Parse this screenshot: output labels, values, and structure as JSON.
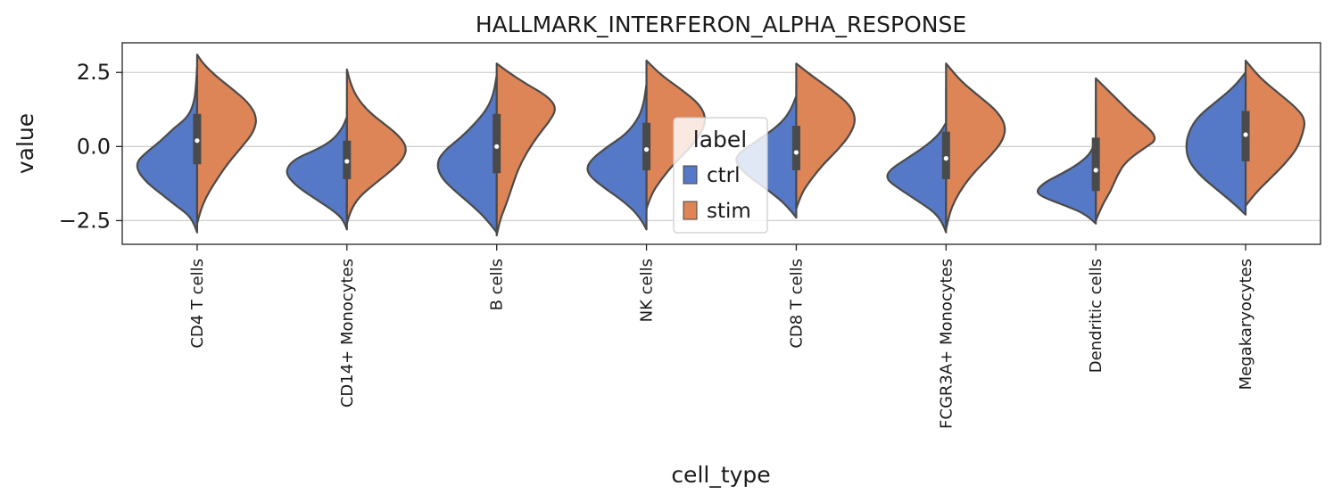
{
  "chart_data": {
    "type": "violin",
    "title": "HALLMARK_INTERFERON_ALPHA_RESPONSE",
    "xlabel": "cell_type",
    "ylabel": "value",
    "ylim": [
      -3.3,
      3.5
    ],
    "yticks": [
      2.5,
      0.0,
      -2.5
    ],
    "ytick_labels": [
      "2.5",
      "0.0",
      "−2.5"
    ],
    "grid": "horizontal",
    "split": true,
    "legend": {
      "title": "label",
      "placement": "center",
      "entries": [
        {
          "name": "ctrl",
          "color": "#5579c6"
        },
        {
          "name": "stim",
          "color": "#dd8557"
        }
      ]
    },
    "categories": [
      "CD4 T cells",
      "CD14+ Monocytes",
      "B cells",
      "NK cells",
      "CD8 T cells",
      "FCGR3A+ Monocytes",
      "Dendritic cells",
      "Megakaryocytes"
    ],
    "series": [
      {
        "name": "ctrl",
        "color": "#5579c6",
        "violins": [
          {
            "range": [
              -2.9,
              2.7
            ],
            "profile": [
              [
                -2.9,
                0.0
              ],
              [
                -2.6,
                0.05
              ],
              [
                -2.3,
                0.15
              ],
              [
                -2.0,
                0.35
              ],
              [
                -1.6,
                0.6
              ],
              [
                -1.2,
                0.85
              ],
              [
                -0.8,
                1.0
              ],
              [
                -0.5,
                1.0
              ],
              [
                -0.2,
                0.85
              ],
              [
                0.2,
                0.6
              ],
              [
                0.6,
                0.4
              ],
              [
                1.0,
                0.15
              ],
              [
                1.5,
                0.05
              ],
              [
                2.0,
                0.02
              ],
              [
                2.7,
                0.0
              ]
            ]
          },
          {
            "range": [
              -2.8,
              1.0
            ],
            "profile": [
              [
                -2.8,
                0.0
              ],
              [
                -2.5,
                0.05
              ],
              [
                -2.2,
                0.2
              ],
              [
                -1.8,
                0.5
              ],
              [
                -1.4,
                0.8
              ],
              [
                -1.0,
                1.0
              ],
              [
                -0.7,
                1.0
              ],
              [
                -0.4,
                0.85
              ],
              [
                -0.1,
                0.5
              ],
              [
                0.2,
                0.25
              ],
              [
                0.6,
                0.08
              ],
              [
                1.0,
                0.0
              ]
            ]
          },
          {
            "range": [
              -2.9,
              2.4
            ],
            "profile": [
              [
                -2.9,
                0.0
              ],
              [
                -2.5,
                0.15
              ],
              [
                -2.0,
                0.4
              ],
              [
                -1.5,
                0.7
              ],
              [
                -1.0,
                0.95
              ],
              [
                -0.5,
                1.0
              ],
              [
                -0.1,
                0.85
              ],
              [
                0.3,
                0.6
              ],
              [
                0.8,
                0.35
              ],
              [
                1.3,
                0.15
              ],
              [
                1.8,
                0.05
              ],
              [
                2.4,
                0.0
              ]
            ]
          },
          {
            "range": [
              -2.8,
              2.1
            ],
            "profile": [
              [
                -2.8,
                0.0
              ],
              [
                -2.4,
                0.1
              ],
              [
                -1.9,
                0.35
              ],
              [
                -1.4,
                0.7
              ],
              [
                -1.0,
                0.95
              ],
              [
                -0.7,
                1.0
              ],
              [
                -0.4,
                0.9
              ],
              [
                0.0,
                0.65
              ],
              [
                0.4,
                0.35
              ],
              [
                0.9,
                0.15
              ],
              [
                1.4,
                0.05
              ],
              [
                2.1,
                0.0
              ]
            ]
          },
          {
            "range": [
              -2.4,
              1.7
            ],
            "profile": [
              [
                -2.4,
                0.0
              ],
              [
                -2.0,
                0.15
              ],
              [
                -1.5,
                0.45
              ],
              [
                -1.0,
                0.8
              ],
              [
                -0.6,
                1.0
              ],
              [
                -0.3,
                1.0
              ],
              [
                0.0,
                0.8
              ],
              [
                0.4,
                0.5
              ],
              [
                0.8,
                0.25
              ],
              [
                1.2,
                0.1
              ],
              [
                1.7,
                0.0
              ]
            ]
          },
          {
            "range": [
              -2.9,
              0.8
            ],
            "profile": [
              [
                -2.9,
                0.0
              ],
              [
                -2.6,
                0.05
              ],
              [
                -2.2,
                0.2
              ],
              [
                -1.8,
                0.5
              ],
              [
                -1.4,
                0.8
              ],
              [
                -1.1,
                1.0
              ],
              [
                -0.8,
                0.95
              ],
              [
                -0.4,
                0.65
              ],
              [
                0.0,
                0.35
              ],
              [
                0.4,
                0.12
              ],
              [
                0.8,
                0.0
              ]
            ]
          },
          {
            "range": [
              -2.6,
              0.2
            ],
            "profile": [
              [
                -2.6,
                0.0
              ],
              [
                -2.3,
                0.15
              ],
              [
                -2.0,
                0.5
              ],
              [
                -1.7,
                0.9
              ],
              [
                -1.5,
                1.0
              ],
              [
                -1.2,
                0.85
              ],
              [
                -0.9,
                0.55
              ],
              [
                -0.6,
                0.3
              ],
              [
                -0.3,
                0.12
              ],
              [
                0.0,
                0.04
              ],
              [
                0.2,
                0.0
              ]
            ]
          },
          {
            "range": [
              -2.3,
              2.5
            ],
            "profile": [
              [
                -2.3,
                0.0
              ],
              [
                -2.0,
                0.15
              ],
              [
                -1.5,
                0.45
              ],
              [
                -1.0,
                0.75
              ],
              [
                -0.5,
                0.95
              ],
              [
                0.0,
                1.0
              ],
              [
                0.5,
                0.95
              ],
              [
                1.0,
                0.8
              ],
              [
                1.5,
                0.5
              ],
              [
                2.0,
                0.2
              ],
              [
                2.5,
                0.0
              ]
            ]
          }
        ]
      },
      {
        "name": "stim",
        "color": "#dd8557",
        "violins": [
          {
            "range": [
              -2.6,
              3.1
            ],
            "profile": [
              [
                -2.6,
                0.0
              ],
              [
                -2.2,
                0.05
              ],
              [
                -1.7,
                0.15
              ],
              [
                -1.2,
                0.3
              ],
              [
                -0.6,
                0.5
              ],
              [
                0.0,
                0.75
              ],
              [
                0.5,
                0.95
              ],
              [
                1.0,
                1.0
              ],
              [
                1.5,
                0.85
              ],
              [
                2.0,
                0.55
              ],
              [
                2.4,
                0.3
              ],
              [
                2.8,
                0.1
              ],
              [
                3.1,
                0.0
              ]
            ]
          },
          {
            "range": [
              -2.6,
              2.6
            ],
            "profile": [
              [
                -2.6,
                0.0
              ],
              [
                -2.2,
                0.05
              ],
              [
                -1.7,
                0.2
              ],
              [
                -1.2,
                0.5
              ],
              [
                -0.8,
                0.75
              ],
              [
                -0.4,
                0.95
              ],
              [
                0.0,
                1.0
              ],
              [
                0.4,
                0.85
              ],
              [
                0.8,
                0.6
              ],
              [
                1.2,
                0.35
              ],
              [
                1.7,
                0.15
              ],
              [
                2.2,
                0.05
              ],
              [
                2.6,
                0.0
              ]
            ]
          },
          {
            "range": [
              -3.0,
              2.8
            ],
            "profile": [
              [
                -3.0,
                0.0
              ],
              [
                -2.5,
                0.05
              ],
              [
                -2.0,
                0.15
              ],
              [
                -1.4,
                0.25
              ],
              [
                -0.8,
                0.35
              ],
              [
                -0.2,
                0.5
              ],
              [
                0.4,
                0.7
              ],
              [
                0.9,
                0.9
              ],
              [
                1.3,
                1.0
              ],
              [
                1.7,
                0.85
              ],
              [
                2.1,
                0.5
              ],
              [
                2.5,
                0.2
              ],
              [
                2.8,
                0.0
              ]
            ]
          },
          {
            "range": [
              -2.1,
              2.9
            ],
            "profile": [
              [
                -2.1,
                0.0
              ],
              [
                -1.6,
                0.08
              ],
              [
                -1.1,
                0.25
              ],
              [
                -0.6,
                0.45
              ],
              [
                -0.1,
                0.7
              ],
              [
                0.4,
                0.9
              ],
              [
                0.9,
                1.0
              ],
              [
                1.4,
                0.9
              ],
              [
                1.9,
                0.6
              ],
              [
                2.4,
                0.25
              ],
              [
                2.9,
                0.0
              ]
            ]
          },
          {
            "range": [
              -2.1,
              2.8
            ],
            "profile": [
              [
                -2.1,
                0.0
              ],
              [
                -1.6,
                0.08
              ],
              [
                -1.1,
                0.25
              ],
              [
                -0.6,
                0.45
              ],
              [
                -0.1,
                0.7
              ],
              [
                0.4,
                0.9
              ],
              [
                0.9,
                1.0
              ],
              [
                1.4,
                0.9
              ],
              [
                1.9,
                0.6
              ],
              [
                2.4,
                0.25
              ],
              [
                2.8,
                0.0
              ]
            ]
          },
          {
            "range": [
              -2.8,
              2.8
            ],
            "profile": [
              [
                -2.8,
                0.0
              ],
              [
                -2.3,
                0.05
              ],
              [
                -1.8,
                0.15
              ],
              [
                -1.3,
                0.3
              ],
              [
                -0.8,
                0.5
              ],
              [
                -0.3,
                0.75
              ],
              [
                0.2,
                0.95
              ],
              [
                0.7,
                1.0
              ],
              [
                1.2,
                0.85
              ],
              [
                1.7,
                0.55
              ],
              [
                2.2,
                0.25
              ],
              [
                2.8,
                0.0
              ]
            ]
          },
          {
            "range": [
              -2.5,
              2.3
            ],
            "profile": [
              [
                -2.5,
                0.0
              ],
              [
                -2.0,
                0.1
              ],
              [
                -1.5,
                0.25
              ],
              [
                -1.0,
                0.35
              ],
              [
                -0.5,
                0.5
              ],
              [
                0.0,
                0.85
              ],
              [
                0.2,
                1.0
              ],
              [
                0.5,
                0.95
              ],
              [
                1.0,
                0.65
              ],
              [
                1.5,
                0.4
              ],
              [
                1.9,
                0.2
              ],
              [
                2.3,
                0.0
              ]
            ]
          },
          {
            "range": [
              -2.0,
              2.9
            ],
            "profile": [
              [
                -2.0,
                0.0
              ],
              [
                -1.6,
                0.15
              ],
              [
                -1.1,
                0.4
              ],
              [
                -0.6,
                0.65
              ],
              [
                -0.1,
                0.85
              ],
              [
                0.4,
                0.95
              ],
              [
                0.9,
                1.0
              ],
              [
                1.3,
                0.85
              ],
              [
                1.8,
                0.55
              ],
              [
                2.3,
                0.25
              ],
              [
                2.9,
                0.0
              ]
            ]
          }
        ]
      }
    ],
    "box": [
      {
        "q1": -0.6,
        "median": 0.2,
        "q3": 1.1,
        "whisker": [
          -2.4,
          2.6
        ]
      },
      {
        "q1": -1.1,
        "median": -0.5,
        "q3": 0.2,
        "whisker": [
          -2.4,
          1.3
        ]
      },
      {
        "q1": -0.9,
        "median": 0.0,
        "q3": 1.1,
        "whisker": [
          -2.5,
          2.4
        ]
      },
      {
        "q1": -0.8,
        "median": -0.1,
        "q3": 0.8,
        "whisker": [
          -2.2,
          2.2
        ]
      },
      {
        "q1": -0.8,
        "median": -0.2,
        "q3": 0.7,
        "whisker": [
          -2.0,
          2.1
        ]
      },
      {
        "q1": -1.1,
        "median": -0.4,
        "q3": 0.5,
        "whisker": [
          -2.4,
          2.0
        ]
      },
      {
        "q1": -1.5,
        "median": -0.8,
        "q3": 0.3,
        "whisker": [
          -2.4,
          1.5
        ]
      },
      {
        "q1": -0.5,
        "median": 0.4,
        "q3": 1.2,
        "whisker": [
          -2.0,
          2.4
        ]
      }
    ]
  }
}
